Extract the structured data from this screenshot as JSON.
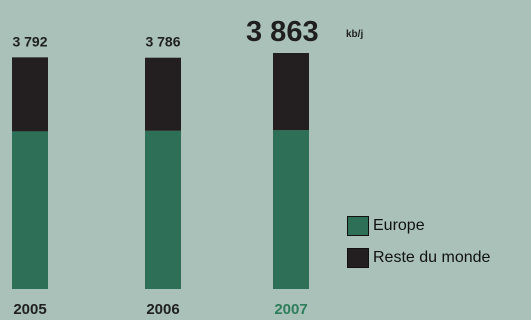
{
  "chart_data": {
    "type": "bar",
    "stacked": true,
    "categories": [
      "2005",
      "2006",
      "2007"
    ],
    "series": [
      {
        "name": "Europe",
        "values": [
          2580,
          2590,
          2600
        ],
        "color": "#2e6f58"
      },
      {
        "name": "Reste du monde",
        "values": [
          1212,
          1196,
          1263
        ],
        "color": "#231f20"
      }
    ],
    "totals": [
      "3 792",
      "3 786",
      "3 863"
    ],
    "unit": "kb/j",
    "highlight_category": "2007",
    "highlight_color": "#2e7d5b",
    "legend_position": "right",
    "ylim": [
      0,
      3863
    ],
    "grid": false
  },
  "legend": {
    "items": [
      {
        "label": "Europe",
        "color": "#2e6f58"
      },
      {
        "label": "Reste du monde",
        "color": "#231f20"
      }
    ]
  }
}
